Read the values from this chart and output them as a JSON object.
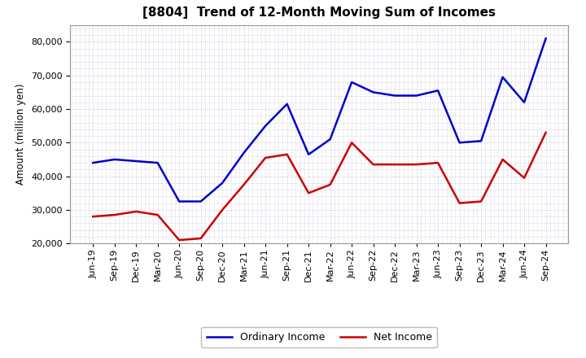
{
  "title": "[8804]  Trend of 12-Month Moving Sum of Incomes",
  "ylabel": "Amount (million yen)",
  "background_color": "#ffffff",
  "plot_bg_color": "#ffffff",
  "grid_color": "#aaaacc",
  "x_labels": [
    "Jun-19",
    "Sep-19",
    "Dec-19",
    "Mar-20",
    "Jun-20",
    "Sep-20",
    "Dec-20",
    "Mar-21",
    "Jun-21",
    "Sep-21",
    "Dec-21",
    "Mar-22",
    "Jun-22",
    "Sep-22",
    "Dec-22",
    "Mar-23",
    "Jun-23",
    "Sep-23",
    "Dec-23",
    "Mar-24",
    "Jun-24",
    "Sep-24"
  ],
  "ordinary_income": [
    44000,
    45000,
    44500,
    44000,
    32500,
    32500,
    38000,
    47000,
    55000,
    61500,
    46500,
    51000,
    68000,
    65000,
    64000,
    64000,
    65500,
    50000,
    50500,
    69500,
    62000,
    81000
  ],
  "net_income": [
    28000,
    28500,
    29500,
    28500,
    21000,
    21500,
    30000,
    37500,
    45500,
    46500,
    35000,
    37500,
    50000,
    43500,
    43500,
    43500,
    44000,
    32000,
    32500,
    45000,
    39500,
    53000
  ],
  "ordinary_color": "#0000cc",
  "net_color": "#cc0000",
  "ylim": [
    20000,
    85000
  ],
  "yticks": [
    20000,
    30000,
    40000,
    50000,
    60000,
    70000,
    80000
  ],
  "line_width": 1.8,
  "legend_labels": [
    "Ordinary Income",
    "Net Income"
  ],
  "title_fontsize": 11,
  "axis_label_fontsize": 8.5,
  "tick_fontsize": 8
}
